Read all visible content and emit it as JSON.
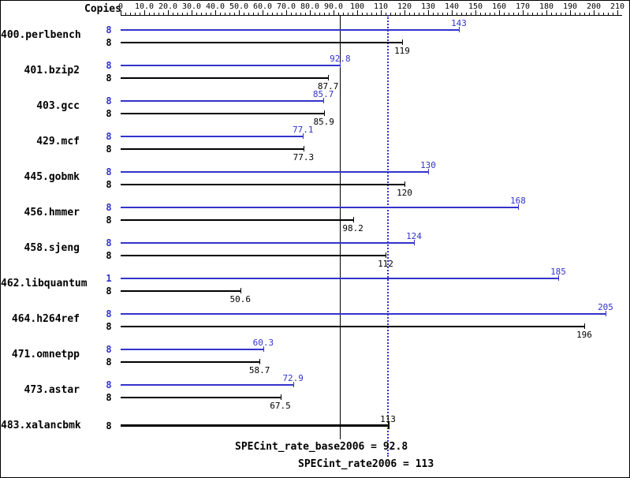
{
  "header": {
    "copies_label": "Copies"
  },
  "chart_data": {
    "type": "bar",
    "orientation": "horizontal",
    "xlim": [
      0,
      210
    ],
    "grid": false,
    "axis_tick_labels": [
      "0",
      "10.0",
      "20.0",
      "30.0",
      "40.0",
      "50.0",
      "60.0",
      "70.0",
      "80.0",
      "90.0",
      "100",
      "110",
      "120",
      "130",
      "140",
      "150",
      "160",
      "170",
      "180",
      "190",
      "200",
      "210"
    ],
    "colors": {
      "peak": "#3333cc",
      "base": "#000000"
    },
    "benchmarks": [
      {
        "name": "400.perlbench",
        "peak": {
          "copies": "8",
          "value": 143,
          "label": "143"
        },
        "base": {
          "copies": "8",
          "value": 119,
          "label": "119"
        }
      },
      {
        "name": "401.bzip2",
        "peak": {
          "copies": "8",
          "value": 92.8,
          "label": "92.8"
        },
        "base": {
          "copies": "8",
          "value": 87.7,
          "label": "87.7"
        }
      },
      {
        "name": "403.gcc",
        "peak": {
          "copies": "8",
          "value": 85.7,
          "label": "85.7"
        },
        "base": {
          "copies": "8",
          "value": 85.9,
          "label": "85.9"
        }
      },
      {
        "name": "429.mcf",
        "peak": {
          "copies": "8",
          "value": 77.1,
          "label": "77.1"
        },
        "base": {
          "copies": "8",
          "value": 77.3,
          "label": "77.3"
        }
      },
      {
        "name": "445.gobmk",
        "peak": {
          "copies": "8",
          "value": 130,
          "label": "130"
        },
        "base": {
          "copies": "8",
          "value": 120,
          "label": "120"
        }
      },
      {
        "name": "456.hmmer",
        "peak": {
          "copies": "8",
          "value": 168,
          "label": "168"
        },
        "base": {
          "copies": "8",
          "value": 98.2,
          "label": "98.2"
        }
      },
      {
        "name": "458.sjeng",
        "peak": {
          "copies": "8",
          "value": 124,
          "label": "124"
        },
        "base": {
          "copies": "8",
          "value": 112,
          "label": "112"
        }
      },
      {
        "name": "462.libquantum",
        "peak": {
          "copies": "1",
          "value": 185,
          "label": "185"
        },
        "base": {
          "copies": "8",
          "value": 50.6,
          "label": "50.6"
        }
      },
      {
        "name": "464.h264ref",
        "peak": {
          "copies": "8",
          "value": 205,
          "label": "205"
        },
        "base": {
          "copies": "8",
          "value": 196,
          "label": "196"
        }
      },
      {
        "name": "471.omnetpp",
        "peak": {
          "copies": "8",
          "value": 60.3,
          "label": "60.3"
        },
        "base": {
          "copies": "8",
          "value": 58.7,
          "label": "58.7"
        }
      },
      {
        "name": "473.astar",
        "peak": {
          "copies": "8",
          "value": 72.9,
          "label": "72.9"
        },
        "base": {
          "copies": "8",
          "value": 67.5,
          "label": "67.5"
        }
      },
      {
        "name": "483.xalancbmk",
        "peak": null,
        "base": {
          "copies": "8",
          "value": 113,
          "label": "113",
          "bold": true
        }
      }
    ],
    "reference_lines": {
      "base": {
        "value": 92.8,
        "style": "solid",
        "color": "#000000",
        "label": "SPECint_rate_base2006 = 92.8"
      },
      "peak": {
        "value": 113,
        "style": "dotted",
        "color": "#3333cc",
        "label": "SPECint_rate2006 = 113"
      }
    }
  }
}
